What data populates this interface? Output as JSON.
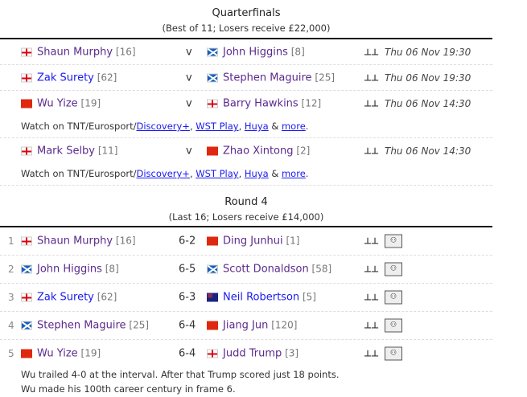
{
  "colors": {
    "visited_link": "#5b2a8e",
    "link": "#1a1aee"
  },
  "quarterfinals": {
    "title": "Quarterfinals",
    "subtitle": "(Best of 11; Losers receive £22,000)",
    "matches": [
      {
        "p1": {
          "name": "Shaun Murphy",
          "seed": "[16]",
          "flag": "england"
        },
        "sep": "v",
        "p2": {
          "name": "John Higgins",
          "seed": "[8]",
          "flag": "scotland"
        },
        "icon": "table-icon",
        "date": "Thu 06 Nov 19:30"
      },
      {
        "p1": {
          "name": "Zak Surety",
          "seed": "[62]",
          "flag": "england",
          "unvisited": true
        },
        "sep": "v",
        "p2": {
          "name": "Stephen Maguire",
          "seed": "[25]",
          "flag": "scotland"
        },
        "icon": "table-icon",
        "date": "Thu 06 Nov 19:30"
      },
      {
        "p1": {
          "name": "Wu Yize",
          "seed": "[19]",
          "flag": "china"
        },
        "sep": "v",
        "p2": {
          "name": "Barry Hawkins",
          "seed": "[12]",
          "flag": "england"
        },
        "icon": "table-icon",
        "date": "Thu 06 Nov 14:30",
        "watch": true
      },
      {
        "p1": {
          "name": "Mark Selby",
          "seed": "[11]",
          "flag": "england"
        },
        "sep": "v",
        "p2": {
          "name": "Zhao Xintong",
          "seed": "[2]",
          "flag": "china"
        },
        "icon": "table-icon",
        "date": "Thu 06 Nov 14:30",
        "watch": true
      }
    ]
  },
  "watch": {
    "prefix": "Watch on TNT/Eurosport/",
    "l1": "Discovery+",
    "c1": ", ",
    "l2": "WST Play",
    "c2": ", ",
    "l3": "Huya",
    "amp": " & ",
    "l4": "more",
    "end": "."
  },
  "round4": {
    "title": "Round 4",
    "subtitle": "(Last 16; Losers receive £14,000)",
    "matches": [
      {
        "num": "1",
        "p1": {
          "name": "Shaun Murphy",
          "seed": "[16]",
          "flag": "england"
        },
        "sep": "6-2",
        "p2": {
          "name": "Ding Junhui",
          "seed": "[1]",
          "flag": "china"
        }
      },
      {
        "num": "2",
        "p1": {
          "name": "John Higgins",
          "seed": "[8]",
          "flag": "scotland"
        },
        "sep": "6-5",
        "p2": {
          "name": "Scott Donaldson",
          "seed": "[58]",
          "flag": "scotland"
        }
      },
      {
        "num": "3",
        "p1": {
          "name": "Zak Surety",
          "seed": "[62]",
          "flag": "england",
          "unvisited": true
        },
        "sep": "6-3",
        "p2": {
          "name": "Neil Robertson",
          "seed": "[5]",
          "flag": "australia",
          "unvisited": true
        }
      },
      {
        "num": "4",
        "p1": {
          "name": "Stephen Maguire",
          "seed": "[25]",
          "flag": "scotland"
        },
        "sep": "6-4",
        "p2": {
          "name": "Jiang Jun",
          "seed": "[120]",
          "flag": "china"
        }
      },
      {
        "num": "5",
        "p1": {
          "name": "Wu Yize",
          "seed": "[19]",
          "flag": "china"
        },
        "sep": "6-4",
        "p2": {
          "name": "Judd Trump",
          "seed": "[3]",
          "flag": "england"
        }
      }
    ],
    "notes": [
      "Wu trailed 4-0 at the interval. After that Trump scored just 18 points.",
      "Wu made his 100th career century in frame 6."
    ]
  }
}
